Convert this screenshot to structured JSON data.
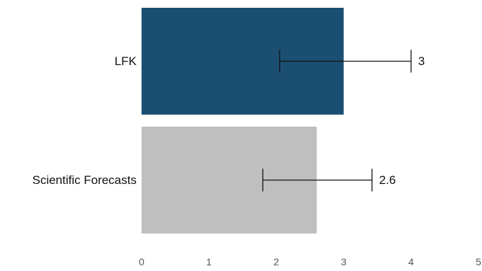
{
  "chart_data": {
    "type": "bar",
    "orientation": "horizontal",
    "title": "",
    "xlabel": "",
    "ylabel": "",
    "xlim": [
      0,
      5
    ],
    "x_ticks": [
      "0",
      "1",
      "2",
      "3",
      "4",
      "5"
    ],
    "grid": false,
    "legend": "none",
    "categories": [
      "LFK",
      "Scientific Forecasts"
    ],
    "values": [
      3.0,
      2.6
    ],
    "value_labels": [
      "3",
      "2.6"
    ],
    "error_low": [
      2.05,
      1.8
    ],
    "error_high": [
      4.0,
      3.42
    ],
    "colors": [
      "#1b4f72",
      "#bfbfbf"
    ]
  }
}
